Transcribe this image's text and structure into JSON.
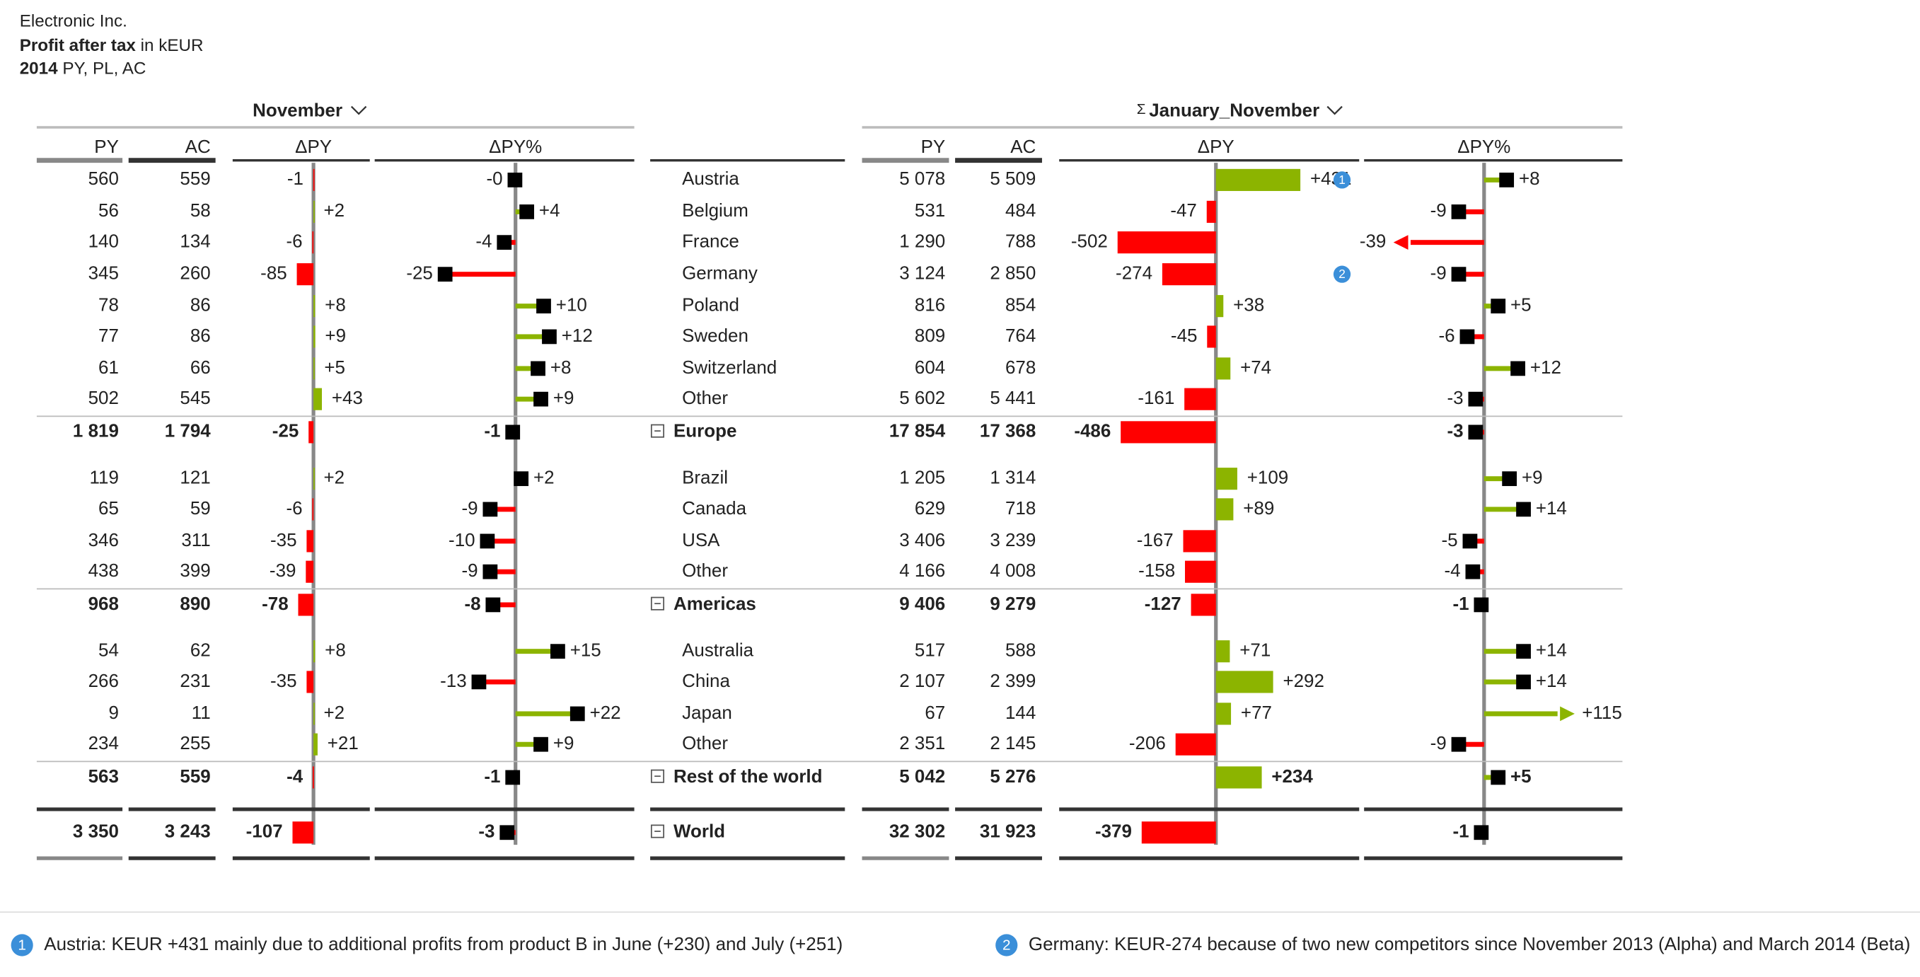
{
  "header": {
    "company": "Electronic Inc.",
    "measure": "Profit after tax",
    "unit": "in kEUR",
    "year": "2014",
    "scenarios": "PY, PL, AC"
  },
  "groups": [
    {
      "title": "November",
      "columns": [
        "PY",
        "AC",
        "ΔPY",
        "ΔPY%"
      ]
    },
    {
      "sigma": "Σ",
      "title": "January_November",
      "columns": [
        "PY",
        "AC",
        "ΔPY",
        "ΔPY%"
      ]
    }
  ],
  "rows": [
    {
      "label": "Austria",
      "total": false,
      "nov": {
        "py": "560",
        "ac": "559",
        "dpy": {
          "value": -1,
          "label": "-1"
        },
        "dpyp": {
          "value": -0.2,
          "label": "-0"
        }
      },
      "ytd": {
        "py": "5 078",
        "ac": "5 509",
        "dpy": {
          "value": 431,
          "label": "+431"
        },
        "dpyp": {
          "value": 8,
          "label": "+8"
        }
      },
      "note": "1"
    },
    {
      "label": "Belgium",
      "total": false,
      "nov": {
        "py": "56",
        "ac": "58",
        "dpy": {
          "value": 2,
          "label": "+2"
        },
        "dpyp": {
          "value": 4,
          "label": "+4"
        }
      },
      "ytd": {
        "py": "531",
        "ac": "484",
        "dpy": {
          "value": -47,
          "label": "-47"
        },
        "dpyp": {
          "value": -9,
          "label": "-9"
        }
      }
    },
    {
      "label": "France",
      "total": false,
      "nov": {
        "py": "140",
        "ac": "134",
        "dpy": {
          "value": -6,
          "label": "-6"
        },
        "dpyp": {
          "value": -4,
          "label": "-4"
        }
      },
      "ytd": {
        "py": "1 290",
        "ac": "788",
        "dpy": {
          "value": -502,
          "label": "-502"
        },
        "dpyp": {
          "value": -39,
          "label": "-39"
        }
      }
    },
    {
      "label": "Germany",
      "total": false,
      "nov": {
        "py": "345",
        "ac": "260",
        "dpy": {
          "value": -85,
          "label": "-85"
        },
        "dpyp": {
          "value": -25,
          "label": "-25"
        }
      },
      "ytd": {
        "py": "3 124",
        "ac": "2 850",
        "dpy": {
          "value": -274,
          "label": "-274"
        },
        "dpyp": {
          "value": -9,
          "label": "-9"
        }
      },
      "note": "2"
    },
    {
      "label": "Poland",
      "total": false,
      "nov": {
        "py": "78",
        "ac": "86",
        "dpy": {
          "value": 8,
          "label": "+8"
        },
        "dpyp": {
          "value": 10,
          "label": "+10"
        }
      },
      "ytd": {
        "py": "816",
        "ac": "854",
        "dpy": {
          "value": 38,
          "label": "+38"
        },
        "dpyp": {
          "value": 5,
          "label": "+5"
        }
      }
    },
    {
      "label": "Sweden",
      "total": false,
      "nov": {
        "py": "77",
        "ac": "86",
        "dpy": {
          "value": 9,
          "label": "+9"
        },
        "dpyp": {
          "value": 12,
          "label": "+12"
        }
      },
      "ytd": {
        "py": "809",
        "ac": "764",
        "dpy": {
          "value": -45,
          "label": "-45"
        },
        "dpyp": {
          "value": -6,
          "label": "-6"
        }
      }
    },
    {
      "label": "Switzerland",
      "total": false,
      "nov": {
        "py": "61",
        "ac": "66",
        "dpy": {
          "value": 5,
          "label": "+5"
        },
        "dpyp": {
          "value": 8,
          "label": "+8"
        }
      },
      "ytd": {
        "py": "604",
        "ac": "678",
        "dpy": {
          "value": 74,
          "label": "+74"
        },
        "dpyp": {
          "value": 12,
          "label": "+12"
        }
      }
    },
    {
      "label": "Other",
      "total": false,
      "nov": {
        "py": "502",
        "ac": "545",
        "dpy": {
          "value": 43,
          "label": "+43"
        },
        "dpyp": {
          "value": 9,
          "label": "+9"
        }
      },
      "ytd": {
        "py": "5 602",
        "ac": "5 441",
        "dpy": {
          "value": -161,
          "label": "-161"
        },
        "dpyp": {
          "value": -3,
          "label": "-3"
        }
      }
    },
    {
      "label": "Europe",
      "total": true,
      "nov": {
        "py": "1 819",
        "ac": "1 794",
        "dpy": {
          "value": -25,
          "label": "-25"
        },
        "dpyp": {
          "value": -1,
          "label": "-1"
        }
      },
      "ytd": {
        "py": "17 854",
        "ac": "17 368",
        "dpy": {
          "value": -486,
          "label": "-486"
        },
        "dpyp": {
          "value": -3,
          "label": "-3"
        }
      }
    },
    {
      "label": "Brazil",
      "total": false,
      "nov": {
        "py": "119",
        "ac": "121",
        "dpy": {
          "value": 2,
          "label": "+2"
        },
        "dpyp": {
          "value": 2,
          "label": "+2"
        }
      },
      "ytd": {
        "py": "1 205",
        "ac": "1 314",
        "dpy": {
          "value": 109,
          "label": "+109"
        },
        "dpyp": {
          "value": 9,
          "label": "+9"
        }
      }
    },
    {
      "label": "Canada",
      "total": false,
      "nov": {
        "py": "65",
        "ac": "59",
        "dpy": {
          "value": -6,
          "label": "-6"
        },
        "dpyp": {
          "value": -9,
          "label": "-9"
        }
      },
      "ytd": {
        "py": "629",
        "ac": "718",
        "dpy": {
          "value": 89,
          "label": "+89"
        },
        "dpyp": {
          "value": 14,
          "label": "+14"
        }
      }
    },
    {
      "label": "USA",
      "total": false,
      "nov": {
        "py": "346",
        "ac": "311",
        "dpy": {
          "value": -35,
          "label": "-35"
        },
        "dpyp": {
          "value": -10,
          "label": "-10"
        }
      },
      "ytd": {
        "py": "3 406",
        "ac": "3 239",
        "dpy": {
          "value": -167,
          "label": "-167"
        },
        "dpyp": {
          "value": -5,
          "label": "-5"
        }
      }
    },
    {
      "label": "Other",
      "total": false,
      "nov": {
        "py": "438",
        "ac": "399",
        "dpy": {
          "value": -39,
          "label": "-39"
        },
        "dpyp": {
          "value": -9,
          "label": "-9"
        }
      },
      "ytd": {
        "py": "4 166",
        "ac": "4 008",
        "dpy": {
          "value": -158,
          "label": "-158"
        },
        "dpyp": {
          "value": -4,
          "label": "-4"
        }
      }
    },
    {
      "label": "Americas",
      "total": true,
      "nov": {
        "py": "968",
        "ac": "890",
        "dpy": {
          "value": -78,
          "label": "-78"
        },
        "dpyp": {
          "value": -8,
          "label": "-8"
        }
      },
      "ytd": {
        "py": "9 406",
        "ac": "9 279",
        "dpy": {
          "value": -127,
          "label": "-127"
        },
        "dpyp": {
          "value": -1,
          "label": "-1"
        }
      }
    },
    {
      "label": "Australia",
      "total": false,
      "nov": {
        "py": "54",
        "ac": "62",
        "dpy": {
          "value": 8,
          "label": "+8"
        },
        "dpyp": {
          "value": 15,
          "label": "+15"
        }
      },
      "ytd": {
        "py": "517",
        "ac": "588",
        "dpy": {
          "value": 71,
          "label": "+71"
        },
        "dpyp": {
          "value": 14,
          "label": "+14"
        }
      }
    },
    {
      "label": "China",
      "total": false,
      "nov": {
        "py": "266",
        "ac": "231",
        "dpy": {
          "value": -35,
          "label": "-35"
        },
        "dpyp": {
          "value": -13,
          "label": "-13"
        }
      },
      "ytd": {
        "py": "2 107",
        "ac": "2 399",
        "dpy": {
          "value": 292,
          "label": "+292"
        },
        "dpyp": {
          "value": 14,
          "label": "+14"
        }
      }
    },
    {
      "label": "Japan",
      "total": false,
      "nov": {
        "py": "9",
        "ac": "11",
        "dpy": {
          "value": 2,
          "label": "+2"
        },
        "dpyp": {
          "value": 22,
          "label": "+22"
        }
      },
      "ytd": {
        "py": "67",
        "ac": "144",
        "dpy": {
          "value": 77,
          "label": "+77"
        },
        "dpyp": {
          "value": 115,
          "label": "+115"
        }
      }
    },
    {
      "label": "Other",
      "total": false,
      "nov": {
        "py": "234",
        "ac": "255",
        "dpy": {
          "value": 21,
          "label": "+21"
        },
        "dpyp": {
          "value": 9,
          "label": "+9"
        }
      },
      "ytd": {
        "py": "2 351",
        "ac": "2 145",
        "dpy": {
          "value": -206,
          "label": "-206"
        },
        "dpyp": {
          "value": -9,
          "label": "-9"
        }
      }
    },
    {
      "label": "Rest of the world",
      "total": true,
      "nov": {
        "py": "563",
        "ac": "559",
        "dpy": {
          "value": -4,
          "label": "-4"
        },
        "dpyp": {
          "value": -1,
          "label": "-1"
        }
      },
      "ytd": {
        "py": "5 042",
        "ac": "5 276",
        "dpy": {
          "value": 234,
          "label": "+234"
        },
        "dpyp": {
          "value": 5,
          "label": "+5"
        }
      }
    },
    {
      "label": "World",
      "total": true,
      "nov": {
        "py": "3 350",
        "ac": "3 243",
        "dpy": {
          "value": -107,
          "label": "-107"
        },
        "dpyp": {
          "value": -3,
          "label": "-3"
        }
      },
      "ytd": {
        "py": "32 302",
        "ac": "31 923",
        "dpy": {
          "value": -379,
          "label": "-379"
        },
        "dpyp": {
          "value": -1,
          "label": "-1"
        }
      }
    }
  ],
  "footnotes": [
    {
      "number": "1",
      "text": "Austria: KEUR +431 mainly due to additional profits from product B in June (+230) and July (+251)"
    },
    {
      "number": "2",
      "text": "Germany: KEUR-274 because of two new competitors since November 2013 (Alpha) and March 2014 (Beta)"
    }
  ]
}
